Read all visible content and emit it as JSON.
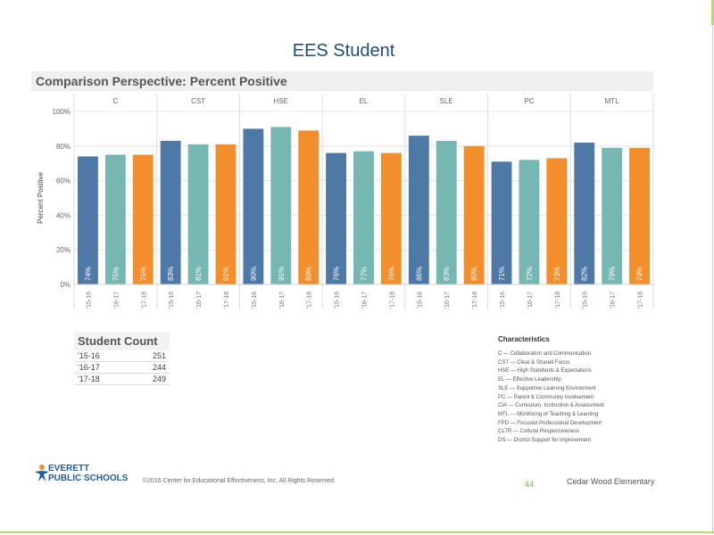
{
  "page_title": "EES Student",
  "panel_title": "Comparison Perspective: Percent Positive",
  "colors": {
    "y1516": "#4e79a7",
    "y1617": "#76b7b2",
    "y1718": "#f28e2b",
    "accent": "#1f4e79"
  },
  "chart_data": {
    "type": "bar",
    "title": "Comparison Perspective: Percent Positive",
    "ylabel": "Percent Positive",
    "ylim": [
      0,
      100
    ],
    "yticks": [
      "0%",
      "20%",
      "40%",
      "60%",
      "80%",
      "100%"
    ],
    "panels": [
      "C",
      "CST",
      "HSE",
      "EL",
      "SLE",
      "PC",
      "MTL"
    ],
    "years": [
      "'15-16",
      "'16-17",
      "'17-18"
    ],
    "values": [
      [
        74,
        75,
        75
      ],
      [
        83,
        81,
        81
      ],
      [
        90,
        91,
        89
      ],
      [
        76,
        77,
        76
      ],
      [
        86,
        83,
        80
      ],
      [
        71,
        72,
        73
      ],
      [
        82,
        79,
        79
      ]
    ],
    "labels": [
      [
        "74%",
        "75%",
        "75%"
      ],
      [
        "83%",
        "81%",
        "81%"
      ],
      [
        "90%",
        "91%",
        "89%"
      ],
      [
        "76%",
        "77%",
        "76%"
      ],
      [
        "86%",
        "83%",
        "80%"
      ],
      [
        "71%",
        "72%",
        "73%"
      ],
      [
        "82%",
        "79%",
        "79%"
      ]
    ],
    "grid": true
  },
  "student_count": {
    "title": "Student Count",
    "rows": [
      {
        "year": "'15-16",
        "count": "251"
      },
      {
        "year": "'16-17",
        "count": "244"
      },
      {
        "year": "'17-18",
        "count": "249"
      }
    ]
  },
  "characteristics": {
    "title": "Characteristics",
    "items": [
      "C — Collaboration and Communication",
      "CST — Clear & Shared Focus",
      "HSE — High Standards & Expectations",
      "EL — Effective Leadership",
      "SLE — Supportive Learning Environment",
      "PC — Parent & Community Involvement",
      "CIA — Curriculum, Instruction & Assessment",
      "MTL — Monitoring of Teaching & Learning",
      "FPD — Focused Professional Development",
      "CLTR — Cultural Responsiveness",
      "DS — District Support for Improvement"
    ]
  },
  "footer": {
    "logo_line1": "EVERETT",
    "logo_line2": "PUBLIC SCHOOLS",
    "copyright": "©2016 Center for Educational Effectiveness, Inc. All Rights Reserved.",
    "page_number": "44",
    "school": "Cedar Wood Elementary"
  }
}
